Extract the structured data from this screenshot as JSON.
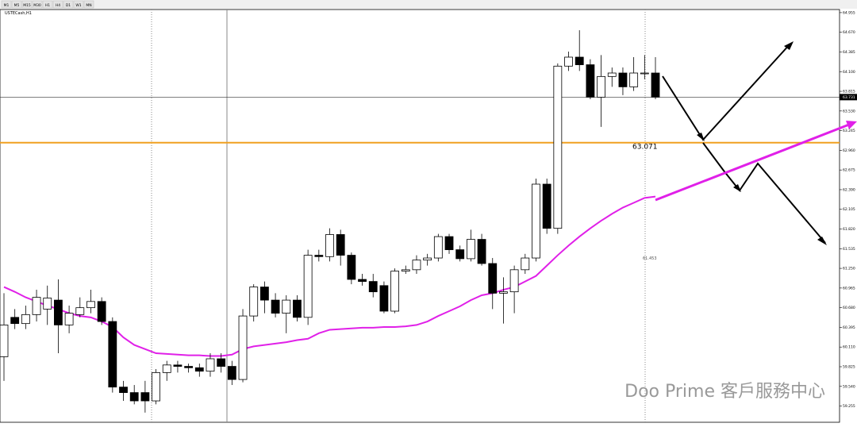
{
  "chart_data": {
    "type": "candlestick",
    "title": "USTECash,H1",
    "timeframes": [
      "M1",
      "M5",
      "M15",
      "M30",
      "H1",
      "H4",
      "D1",
      "W1",
      "MN"
    ],
    "open": [
      59.97,
      60.54,
      60.45,
      60.58,
      60.66,
      60.79,
      60.43,
      60.58,
      60.68,
      60.77,
      60.48,
      59.53,
      59.45,
      59.45,
      59.33,
      59.74,
      59.85,
      59.83,
      59.81,
      59.76,
      59.94,
      59.83,
      59.64,
      60.56,
      60.98,
      60.79,
      60.6,
      60.79,
      60.54,
      61.44,
      61.42,
      61.74,
      61.44,
      61.09,
      61.06,
      61.0,
      60.63,
      61.21,
      61.23,
      61.37,
      61.4,
      61.71,
      61.52,
      61.39,
      61.67,
      61.32,
      60.89,
      60.91,
      61.23,
      61.4,
      62.47,
      61.83,
      64.18,
      64.31,
      64.2,
      63.73,
      64.03,
      64.08,
      63.88,
      64.08,
      64.08
    ],
    "high": [
      60.89,
      60.66,
      60.71,
      60.94,
      61.0,
      61.09,
      60.71,
      60.83,
      60.94,
      60.83,
      60.54,
      59.62,
      59.56,
      59.62,
      59.79,
      59.91,
      59.91,
      59.87,
      59.87,
      60.02,
      60.02,
      59.91,
      60.66,
      61.02,
      61.06,
      60.89,
      60.86,
      60.86,
      61.52,
      61.52,
      61.83,
      61.81,
      61.48,
      61.17,
      61.17,
      61.06,
      61.25,
      61.29,
      61.44,
      61.46,
      61.75,
      61.75,
      61.58,
      61.81,
      61.75,
      61.4,
      61.12,
      61.29,
      61.46,
      62.55,
      62.55,
      64.22,
      64.39,
      64.7,
      64.28,
      64.34,
      64.16,
      64.16,
      64.31,
      64.34,
      64.31
    ],
    "low": [
      59.62,
      60.37,
      60.37,
      60.48,
      60.43,
      60.02,
      60.31,
      60.54,
      60.6,
      60.43,
      59.45,
      59.33,
      59.28,
      59.16,
      59.28,
      59.62,
      59.74,
      59.74,
      59.68,
      59.68,
      59.74,
      59.56,
      59.6,
      60.48,
      60.6,
      60.54,
      60.31,
      60.48,
      60.43,
      61.35,
      61.35,
      61.29,
      61.02,
      61.0,
      60.83,
      60.6,
      60.6,
      61.17,
      61.17,
      61.29,
      61.35,
      61.46,
      61.35,
      61.35,
      61.29,
      60.66,
      60.45,
      60.6,
      61.17,
      61.35,
      61.75,
      61.75,
      64.11,
      64.11,
      63.7,
      63.3,
      63.88,
      63.76,
      63.82,
      63.99,
      63.7
    ],
    "close": [
      60.43,
      60.45,
      60.58,
      60.83,
      60.82,
      60.43,
      60.6,
      60.68,
      60.77,
      60.48,
      59.53,
      59.45,
      59.33,
      59.33,
      59.74,
      59.85,
      59.83,
      59.81,
      59.76,
      59.94,
      59.83,
      59.64,
      60.56,
      60.98,
      60.79,
      60.6,
      60.79,
      60.54,
      61.44,
      61.42,
      61.74,
      61.44,
      61.09,
      61.06,
      60.91,
      60.63,
      61.21,
      61.23,
      61.37,
      61.4,
      61.71,
      61.52,
      61.39,
      61.67,
      61.32,
      60.89,
      60.91,
      61.23,
      61.4,
      62.47,
      61.83,
      64.18,
      64.31,
      64.2,
      63.73,
      64.03,
      64.08,
      63.88,
      64.08,
      64.08,
      63.73
    ],
    "series": [
      {
        "name": "MA",
        "color": "#e020e8",
        "values": [
          60.98,
          60.91,
          60.83,
          60.77,
          60.71,
          60.66,
          60.6,
          60.56,
          60.54,
          60.48,
          60.4,
          60.25,
          60.14,
          60.08,
          60.02,
          60.01,
          60.0,
          59.99,
          59.99,
          59.98,
          59.98,
          60.0,
          60.08,
          60.12,
          60.14,
          60.16,
          60.18,
          60.21,
          60.23,
          60.31,
          60.36,
          60.37,
          60.38,
          60.39,
          60.39,
          60.4,
          60.4,
          60.41,
          60.43,
          60.48,
          60.56,
          60.63,
          60.7,
          60.79,
          60.86,
          60.89,
          60.94,
          60.98,
          61.06,
          61.14,
          61.29,
          61.44,
          61.58,
          61.71,
          61.83,
          61.94,
          62.04,
          62.13,
          62.2,
          62.27,
          62.29
        ]
      }
    ],
    "level": 63.071,
    "level_color": "#f0a020",
    "last_price": {
      "value": 63.731,
      "label": "63.731"
    },
    "note": "61.453",
    "ylim": [
      59.02,
      65.0
    ],
    "yticks": [
      {
        "value": 64.955,
        "label": "64.955"
      },
      {
        "value": 64.67,
        "label": "64.670"
      },
      {
        "value": 64.385,
        "label": "64.385"
      },
      {
        "value": 64.1,
        "label": "64.100"
      },
      {
        "value": 63.815,
        "label": "63.815"
      },
      {
        "value": 63.53,
        "label": "63.530"
      },
      {
        "value": 63.245,
        "label": "63.245"
      },
      {
        "value": 62.96,
        "label": "62.960"
      },
      {
        "value": 62.675,
        "label": "62.675"
      },
      {
        "value": 62.39,
        "label": "62.390"
      },
      {
        "value": 62.105,
        "label": "62.105"
      },
      {
        "value": 61.82,
        "label": "61.820"
      },
      {
        "value": 61.535,
        "label": "61.535"
      },
      {
        "value": 61.25,
        "label": "61.250"
      },
      {
        "value": 60.965,
        "label": "60.965"
      },
      {
        "value": 60.68,
        "label": "60.680"
      },
      {
        "value": 60.395,
        "label": "60.395"
      },
      {
        "value": 60.11,
        "label": "60.110"
      },
      {
        "value": 59.825,
        "label": "59.825"
      },
      {
        "value": 59.54,
        "label": "59.540"
      },
      {
        "value": 59.255,
        "label": "59.255"
      }
    ],
    "watermark": "Doo Prime 客戶服務中心"
  }
}
